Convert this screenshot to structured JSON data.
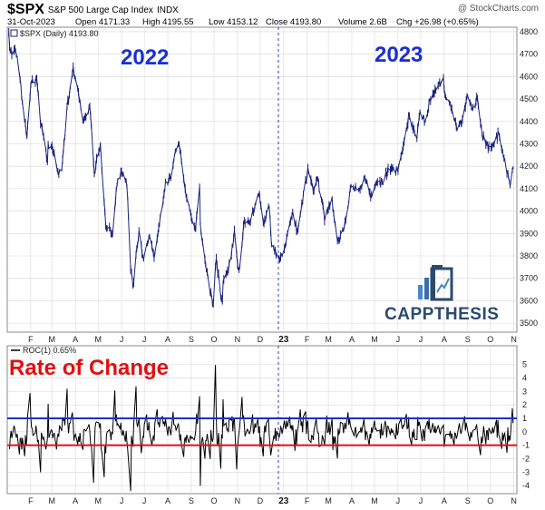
{
  "header": {
    "symbol": "$SPX",
    "name": "S&P 500 Large Cap Index",
    "exchange": "INDX",
    "watermark": "@ StockCharts.com",
    "date": "31-Oct-2023",
    "open": "Open 4171.33",
    "high": "High 4195.55",
    "low": "Low 4153.12",
    "close": "Close 4193.80",
    "volume": "Volume 2.6B",
    "chg": "Chg +26.98 (+0.65%)"
  },
  "price_panel": {
    "legend": "$SPX (Daily) 4193.80",
    "year_left": "2022",
    "year_right": "2023",
    "logo": "CAPPTHESIS"
  },
  "roc_panel": {
    "legend": "ROC(1) 0.65%",
    "title": "Rate of Change"
  },
  "colors": {
    "price_line": "#1a237e",
    "roc_line": "#000000",
    "upper_band": "#1a2fd0",
    "lower_band": "#e01010",
    "divider": "#3a3ad0",
    "year_text": "#1a2fd0",
    "roc_title": "#e01010",
    "logo": "#2c4a6e",
    "grid": "#d8d8d8"
  },
  "chart_data": [
    {
      "type": "line",
      "series_name": "$SPX (Daily)",
      "x_ticks": [
        "F",
        "M",
        "A",
        "M",
        "J",
        "J",
        "A",
        "S",
        "O",
        "N",
        "D",
        "23",
        "F",
        "M",
        "A",
        "M",
        "J",
        "J",
        "A",
        "S",
        "O",
        "N"
      ],
      "y_ticks": [
        3500,
        3600,
        3700,
        3800,
        3900,
        4000,
        4100,
        4200,
        4300,
        4400,
        4500,
        4600,
        4700,
        4800
      ],
      "ylim": [
        3460,
        4820
      ],
      "x_range": [
        "2022-01",
        "2023-11"
      ],
      "points": [
        [
          "2022-01-03",
          4796
        ],
        [
          "2022-01-05",
          4700
        ],
        [
          "2022-01-12",
          4726
        ],
        [
          "2022-01-18",
          4577
        ],
        [
          "2022-01-24",
          4410
        ],
        [
          "2022-01-27",
          4326
        ],
        [
          "2022-02-02",
          4589
        ],
        [
          "2022-02-09",
          4587
        ],
        [
          "2022-02-14",
          4401
        ],
        [
          "2022-02-23",
          4225
        ],
        [
          "2022-02-24",
          4288
        ],
        [
          "2022-03-01",
          4306
        ],
        [
          "2022-03-08",
          4170
        ],
        [
          "2022-03-14",
          4173
        ],
        [
          "2022-03-21",
          4461
        ],
        [
          "2022-03-29",
          4631
        ],
        [
          "2022-04-05",
          4525
        ],
        [
          "2022-04-12",
          4397
        ],
        [
          "2022-04-20",
          4460
        ],
        [
          "2022-04-26",
          4175
        ],
        [
          "2022-05-04",
          4300
        ],
        [
          "2022-05-11",
          3935
        ],
        [
          "2022-05-20",
          3901
        ],
        [
          "2022-05-27",
          4158
        ],
        [
          "2022-06-02",
          4177
        ],
        [
          "2022-06-08",
          4115
        ],
        [
          "2022-06-13",
          3750
        ],
        [
          "2022-06-16",
          3667
        ],
        [
          "2022-06-24",
          3912
        ],
        [
          "2022-06-30",
          3785
        ],
        [
          "2022-07-08",
          3899
        ],
        [
          "2022-07-14",
          3790
        ],
        [
          "2022-07-22",
          3962
        ],
        [
          "2022-07-29",
          4130
        ],
        [
          "2022-08-05",
          4145
        ],
        [
          "2022-08-12",
          4280
        ],
        [
          "2022-08-16",
          4305
        ],
        [
          "2022-08-26",
          4058
        ],
        [
          "2022-09-06",
          3908
        ],
        [
          "2022-09-12",
          4110
        ],
        [
          "2022-09-13",
          3932
        ],
        [
          "2022-09-23",
          3693
        ],
        [
          "2022-09-30",
          3586
        ],
        [
          "2022-10-04",
          3791
        ],
        [
          "2022-10-12",
          3577
        ],
        [
          "2022-10-13",
          3670
        ],
        [
          "2022-10-21",
          3752
        ],
        [
          "2022-10-28",
          3901
        ],
        [
          "2022-11-03",
          3720
        ],
        [
          "2022-11-10",
          3956
        ],
        [
          "2022-11-18",
          3965
        ],
        [
          "2022-11-30",
          4080
        ],
        [
          "2022-12-06",
          3941
        ],
        [
          "2022-12-13",
          4019
        ],
        [
          "2022-12-16",
          3852
        ],
        [
          "2022-12-28",
          3783
        ],
        [
          "2023-01-06",
          3895
        ],
        [
          "2023-01-13",
          3999
        ],
        [
          "2023-01-19",
          3899
        ],
        [
          "2023-01-27",
          4070
        ],
        [
          "2023-02-02",
          4179
        ],
        [
          "2023-02-10",
          4090
        ],
        [
          "2023-02-15",
          4147
        ],
        [
          "2023-02-24",
          3970
        ],
        [
          "2023-03-06",
          4048
        ],
        [
          "2023-03-13",
          3855
        ],
        [
          "2023-03-22",
          3937
        ],
        [
          "2023-03-31",
          4109
        ],
        [
          "2023-04-12",
          4091
        ],
        [
          "2023-04-18",
          4154
        ],
        [
          "2023-04-26",
          4056
        ],
        [
          "2023-05-05",
          4136
        ],
        [
          "2023-05-12",
          4124
        ],
        [
          "2023-05-19",
          4191
        ],
        [
          "2023-05-31",
          4179
        ],
        [
          "2023-06-09",
          4298
        ],
        [
          "2023-06-15",
          4425
        ],
        [
          "2023-06-26",
          4328
        ],
        [
          "2023-06-30",
          4450
        ],
        [
          "2023-07-07",
          4398
        ],
        [
          "2023-07-14",
          4505
        ],
        [
          "2023-07-20",
          4535
        ],
        [
          "2023-07-31",
          4589
        ],
        [
          "2023-08-03",
          4501
        ],
        [
          "2023-08-10",
          4468
        ],
        [
          "2023-08-18",
          4370
        ],
        [
          "2023-08-25",
          4405
        ],
        [
          "2023-08-31",
          4507
        ],
        [
          "2023-09-07",
          4451
        ],
        [
          "2023-09-14",
          4505
        ],
        [
          "2023-09-21",
          4330
        ],
        [
          "2023-09-29",
          4288
        ],
        [
          "2023-10-06",
          4308
        ],
        [
          "2023-10-12",
          4349
        ],
        [
          "2023-10-20",
          4224
        ],
        [
          "2023-10-27",
          4117
        ],
        [
          "2023-10-31",
          4194
        ]
      ]
    },
    {
      "type": "line",
      "series_name": "ROC(1)",
      "x_ticks": [
        "F",
        "M",
        "A",
        "M",
        "J",
        "J",
        "A",
        "S",
        "O",
        "N",
        "D",
        "23",
        "F",
        "M",
        "A",
        "M",
        "J",
        "J",
        "A",
        "S",
        "O",
        "N"
      ],
      "y_ticks": [
        -4,
        -3,
        -2,
        -1,
        0,
        1,
        2,
        3,
        4,
        5
      ],
      "ylim": [
        -4.6,
        6.4
      ],
      "reference_lines": [
        1,
        -1
      ],
      "last_value": 0.65
    }
  ]
}
